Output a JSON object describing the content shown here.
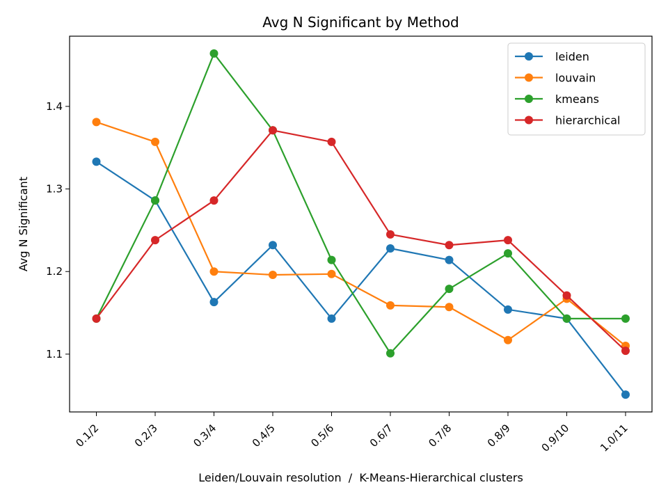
{
  "chart_data": {
    "type": "line",
    "title": "Avg N Significant by Method",
    "xlabel": "Leiden/Louvain resolution  /  K-Means-Hierarchical clusters",
    "ylabel": "Avg N Significant",
    "categories": [
      "0.1/2",
      "0.2/3",
      "0.3/4",
      "0.4/5",
      "0.5/6",
      "0.6/7",
      "0.7/8",
      "0.8/9",
      "0.9/10",
      "1.0/11"
    ],
    "ylim": [
      1.03,
      1.485
    ],
    "yticks": [
      1.1,
      1.2,
      1.3,
      1.4
    ],
    "ytick_labels": [
      "1.1",
      "1.2",
      "1.3",
      "1.4"
    ],
    "grid": false,
    "legend_position": "top-right",
    "series": [
      {
        "name": "leiden",
        "color": "#1f77b4",
        "values": [
          1.333,
          1.286,
          1.163,
          1.232,
          1.143,
          1.228,
          1.214,
          1.154,
          1.143,
          1.051
        ]
      },
      {
        "name": "louvain",
        "color": "#ff7f0e",
        "values": [
          1.381,
          1.357,
          1.2,
          1.196,
          1.197,
          1.159,
          1.157,
          1.117,
          1.167,
          1.11
        ]
      },
      {
        "name": "kmeans",
        "color": "#2ca02c",
        "values": [
          1.143,
          1.286,
          1.464,
          1.371,
          1.214,
          1.101,
          1.179,
          1.222,
          1.143,
          1.143
        ]
      },
      {
        "name": "hierarchical",
        "color": "#d62728",
        "values": [
          1.143,
          1.238,
          1.286,
          1.371,
          1.357,
          1.245,
          1.232,
          1.238,
          1.171,
          1.104
        ]
      }
    ]
  }
}
